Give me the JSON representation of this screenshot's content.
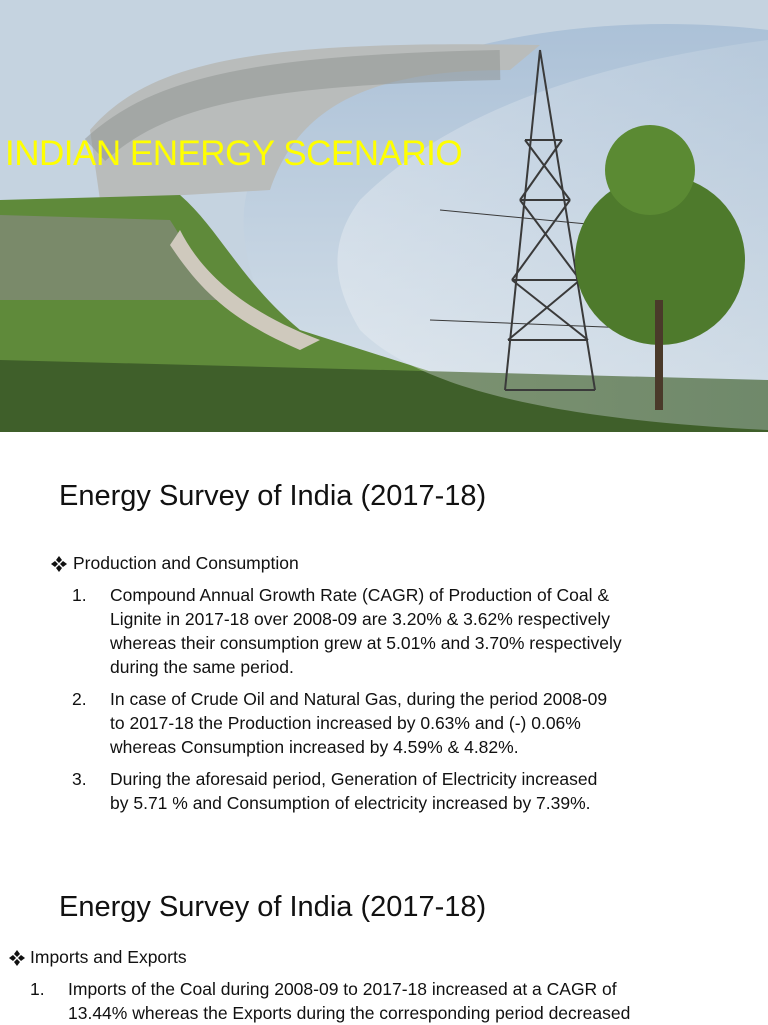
{
  "slide1": {
    "title": "INDIAN ENERGY SCENARIO"
  },
  "slide2": {
    "heading": "Energy Survey of India (2017-18)",
    "section": "Production and Consumption",
    "items": [
      {
        "number": "1.",
        "lines": [
          "Compound Annual Growth Rate (CAGR) of Production of Coal &",
          "Lignite in 2017-18 over 2008-09 are 3.20% & 3.62% respectively",
          "whereas their consumption grew at 5.01% and 3.70% respectively",
          "during the same period."
        ]
      },
      {
        "number": "2.",
        "lines": [
          "In case of Crude Oil and Natural Gas, during the period 2008-09",
          "to 2017-18 the Production increased by 0.63% and (-) 0.06%",
          "whereas Consumption increased by 4.59% & 4.82%."
        ]
      },
      {
        "number": "3.",
        "lines": [
          "During the aforesaid period, Generation of Electricity increased",
          "by 5.71 % and Consumption of electricity increased by 7.39%."
        ]
      }
    ]
  },
  "slide3": {
    "heading": "Energy Survey of India (2017-18)",
    "section": "Imports and Exports",
    "items": [
      {
        "number": "1.",
        "lines": [
          "Imports of the Coal during 2008-09 to 2017-18 increased at a CAGR of",
          "13.44% whereas the Exports during the corresponding period decreased"
        ]
      }
    ]
  }
}
